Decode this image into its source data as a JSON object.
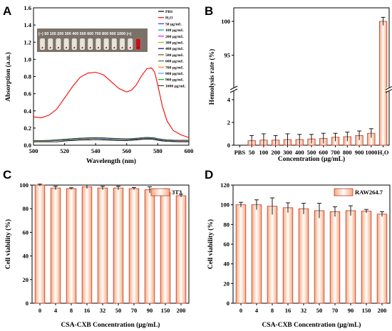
{
  "panels": {
    "A": "A",
    "B": "B",
    "C": "C",
    "D": "D"
  },
  "colors": {
    "bar_fill": "#fbc6a0",
    "bar_stroke": "#c0392b",
    "bar_highlight": "#ffffff",
    "axis": "#000000"
  },
  "chart_data": [
    {
      "type": "line",
      "panel": "A",
      "xlabel": "Wavelength (nm)",
      "ylabel": "Absorption (a.u.)",
      "xlim": [
        500,
        600
      ],
      "ylim": [
        0.0,
        1.6
      ],
      "xticks": [
        "500",
        "520",
        "540",
        "560",
        "580",
        "600"
      ],
      "yticks": [
        "0.0",
        "0.2",
        "0.4",
        "0.6",
        "0.8",
        "1.0",
        "1.2",
        "1.4",
        "1.6"
      ],
      "inset_label": "(−)  50 100 200 300 400   500 600 700 800 900 1000 (+)",
      "x": [
        500,
        505,
        510,
        515,
        520,
        525,
        530,
        535,
        540,
        545,
        550,
        555,
        560,
        563,
        566,
        570,
        573,
        576,
        578,
        580,
        583,
        586,
        590,
        595,
        600
      ],
      "series": [
        {
          "name": "PBS",
          "color": "#000000",
          "values": [
            0.04,
            0.04,
            0.04,
            0.04,
            0.05,
            0.055,
            0.06,
            0.062,
            0.065,
            0.062,
            0.058,
            0.055,
            0.055,
            0.058,
            0.062,
            0.068,
            0.072,
            0.07,
            0.065,
            0.058,
            0.05,
            0.045,
            0.042,
            0.04,
            0.04
          ]
        },
        {
          "name": "H₂O",
          "color": "#ff0000",
          "values": [
            0.33,
            0.32,
            0.35,
            0.42,
            0.55,
            0.68,
            0.79,
            0.84,
            0.85,
            0.82,
            0.74,
            0.66,
            0.62,
            0.64,
            0.7,
            0.82,
            0.89,
            0.9,
            0.85,
            0.7,
            0.45,
            0.28,
            0.17,
            0.12,
            0.09
          ]
        },
        {
          "name": "50 μg/mL",
          "color": "#3333ff",
          "values": [
            0.05,
            0.05,
            0.05,
            0.055,
            0.06,
            0.065,
            0.07,
            0.075,
            0.078,
            0.075,
            0.07,
            0.066,
            0.064,
            0.066,
            0.07,
            0.076,
            0.08,
            0.078,
            0.074,
            0.066,
            0.058,
            0.052,
            0.05,
            0.048,
            0.048
          ]
        },
        {
          "name": "100 μg/mL",
          "color": "#00a0a0",
          "values": [
            0.05,
            0.05,
            0.052,
            0.056,
            0.062,
            0.068,
            0.073,
            0.077,
            0.08,
            0.077,
            0.072,
            0.068,
            0.066,
            0.068,
            0.072,
            0.078,
            0.082,
            0.08,
            0.076,
            0.068,
            0.06,
            0.054,
            0.051,
            0.049,
            0.049
          ]
        },
        {
          "name": "200 μg/mL",
          "color": "#ff00ff",
          "values": [
            0.05,
            0.05,
            0.052,
            0.057,
            0.063,
            0.069,
            0.074,
            0.078,
            0.081,
            0.078,
            0.073,
            0.069,
            0.067,
            0.069,
            0.073,
            0.079,
            0.083,
            0.081,
            0.077,
            0.069,
            0.061,
            0.055,
            0.052,
            0.05,
            0.05
          ]
        },
        {
          "name": "300 μg/mL",
          "color": "#b0b000",
          "values": [
            0.05,
            0.05,
            0.053,
            0.058,
            0.064,
            0.07,
            0.075,
            0.079,
            0.082,
            0.079,
            0.074,
            0.07,
            0.068,
            0.07,
            0.074,
            0.08,
            0.084,
            0.082,
            0.078,
            0.07,
            0.062,
            0.056,
            0.053,
            0.051,
            0.051
          ]
        },
        {
          "name": "400 μg/mL",
          "color": "#0000a0",
          "values": [
            0.05,
            0.051,
            0.054,
            0.059,
            0.065,
            0.071,
            0.076,
            0.08,
            0.083,
            0.08,
            0.075,
            0.071,
            0.069,
            0.071,
            0.075,
            0.081,
            0.085,
            0.083,
            0.079,
            0.071,
            0.063,
            0.057,
            0.054,
            0.052,
            0.052
          ]
        },
        {
          "name": "500 μg/mL",
          "color": "#8b4513",
          "values": [
            0.05,
            0.051,
            0.054,
            0.06,
            0.066,
            0.072,
            0.077,
            0.081,
            0.084,
            0.081,
            0.076,
            0.072,
            0.07,
            0.072,
            0.076,
            0.082,
            0.086,
            0.084,
            0.08,
            0.072,
            0.064,
            0.058,
            0.055,
            0.053,
            0.053
          ]
        },
        {
          "name": "600 μg/mL",
          "color": "#556b2f",
          "values": [
            0.051,
            0.052,
            0.055,
            0.061,
            0.067,
            0.073,
            0.078,
            0.082,
            0.085,
            0.082,
            0.077,
            0.073,
            0.071,
            0.073,
            0.077,
            0.083,
            0.087,
            0.085,
            0.081,
            0.073,
            0.065,
            0.059,
            0.056,
            0.054,
            0.054
          ]
        },
        {
          "name": "700 μg/mL",
          "color": "#ff7f00",
          "values": [
            0.051,
            0.052,
            0.055,
            0.061,
            0.068,
            0.074,
            0.079,
            0.083,
            0.086,
            0.083,
            0.078,
            0.074,
            0.072,
            0.074,
            0.078,
            0.084,
            0.088,
            0.086,
            0.082,
            0.074,
            0.066,
            0.06,
            0.057,
            0.055,
            0.055
          ]
        },
        {
          "name": "800 μg/mL",
          "color": "#6495ed",
          "values": [
            0.052,
            0.053,
            0.056,
            0.062,
            0.069,
            0.075,
            0.08,
            0.084,
            0.087,
            0.084,
            0.079,
            0.075,
            0.073,
            0.075,
            0.079,
            0.085,
            0.089,
            0.087,
            0.083,
            0.075,
            0.067,
            0.061,
            0.058,
            0.056,
            0.056
          ]
        },
        {
          "name": "900 μg/mL",
          "color": "#00c000",
          "values": [
            0.052,
            0.053,
            0.056,
            0.062,
            0.069,
            0.075,
            0.081,
            0.085,
            0.088,
            0.085,
            0.08,
            0.076,
            0.074,
            0.076,
            0.08,
            0.086,
            0.09,
            0.088,
            0.084,
            0.076,
            0.068,
            0.062,
            0.059,
            0.057,
            0.057
          ]
        },
        {
          "name": "1000 μg/mL",
          "color": "#2f4f2f",
          "values": [
            0.053,
            0.054,
            0.057,
            0.063,
            0.07,
            0.076,
            0.082,
            0.086,
            0.089,
            0.086,
            0.081,
            0.077,
            0.075,
            0.077,
            0.081,
            0.087,
            0.091,
            0.089,
            0.085,
            0.077,
            0.069,
            0.063,
            0.06,
            0.058,
            0.058
          ]
        }
      ]
    },
    {
      "type": "bar",
      "panel": "B",
      "xlabel": "Concentration (μg/mL)",
      "ylabel": "Hemolysis rate (%)",
      "categories": [
        "PBS",
        "50",
        "100",
        "200",
        "300",
        "400",
        "500",
        "600",
        "700",
        "800",
        "900",
        "1000",
        "H₂O"
      ],
      "values": [
        0,
        0.4,
        0.45,
        0.45,
        0.5,
        0.5,
        0.55,
        0.6,
        0.7,
        0.75,
        0.85,
        1.05,
        100
      ],
      "errors": [
        0,
        0.45,
        0.55,
        0.4,
        0.5,
        0.45,
        0.4,
        0.45,
        0.35,
        0.4,
        0.4,
        0.4,
        0.6
      ],
      "ylim_lower": [
        0,
        5
      ],
      "ylim_upper": [
        90,
        102
      ],
      "yticks_lower": [
        "0",
        "2",
        "4"
      ],
      "yticks_upper": [
        "95",
        "100"
      ],
      "broken_axis": true
    },
    {
      "type": "bar",
      "panel": "C",
      "xlabel": "CSA-CXB Concentration (μg/mL)",
      "ylabel": "Cell viability (%)",
      "legend": "3T3",
      "categories": [
        "0",
        "4",
        "8",
        "16",
        "32",
        "50",
        "70",
        "90",
        "150",
        "200"
      ],
      "values": [
        100,
        97.5,
        97,
        98.5,
        97.5,
        97.5,
        97,
        96,
        94,
        91
      ],
      "errors": [
        0.8,
        1.5,
        0.7,
        1.5,
        1.5,
        1.6,
        0.9,
        2.6,
        3.0,
        1.2
      ],
      "ylim": [
        0,
        100
      ],
      "yticks": [
        "0",
        "20",
        "40",
        "60",
        "80",
        "100"
      ]
    },
    {
      "type": "bar",
      "panel": "D",
      "xlabel": "CSA-CXB Concentration (μg/mL)",
      "ylabel": "Cell viability (%)",
      "legend": "RAW264.7",
      "categories": [
        "0",
        "4",
        "8",
        "16",
        "32",
        "50",
        "70",
        "90",
        "150",
        "200"
      ],
      "values": [
        100,
        100,
        98.5,
        97,
        96,
        94,
        93,
        94,
        93.5,
        90.5
      ],
      "errors": [
        2.5,
        5,
        8.5,
        5,
        5.5,
        7.5,
        5,
        5,
        1.8,
        2.5
      ],
      "ylim": [
        0,
        120
      ],
      "yticks": [
        "0",
        "20",
        "40",
        "60",
        "80",
        "100",
        "120"
      ]
    }
  ]
}
